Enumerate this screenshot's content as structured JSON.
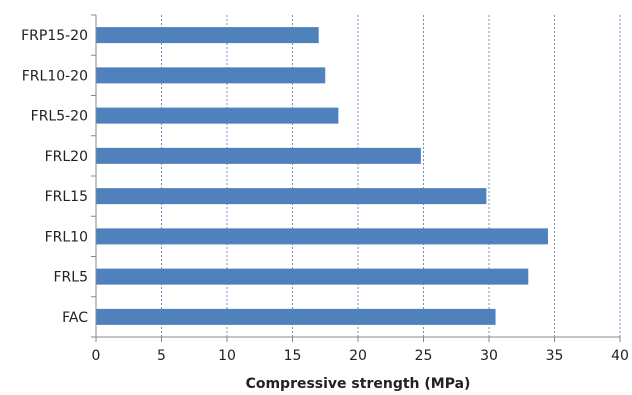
{
  "chart_data": {
    "type": "bar",
    "orientation": "horizontal",
    "title": "",
    "xlabel": "Compressive strength (MPa)",
    "ylabel": "",
    "categories": [
      "FRP15-20",
      "FRL10-20",
      "FRL5-20",
      "FRL20",
      "FRL15",
      "FRL10",
      "FRL5",
      "FAC"
    ],
    "values": [
      17.0,
      17.5,
      18.5,
      24.8,
      29.8,
      34.5,
      33.0,
      30.5
    ],
    "xlim": [
      0,
      40
    ],
    "xticks": [
      0,
      5,
      10,
      15,
      20,
      25,
      30,
      35,
      40
    ],
    "grid": "vertical-dashed",
    "legend": "none",
    "bar_color": "#4f81bd",
    "grid_color": "#6f8fbf"
  }
}
